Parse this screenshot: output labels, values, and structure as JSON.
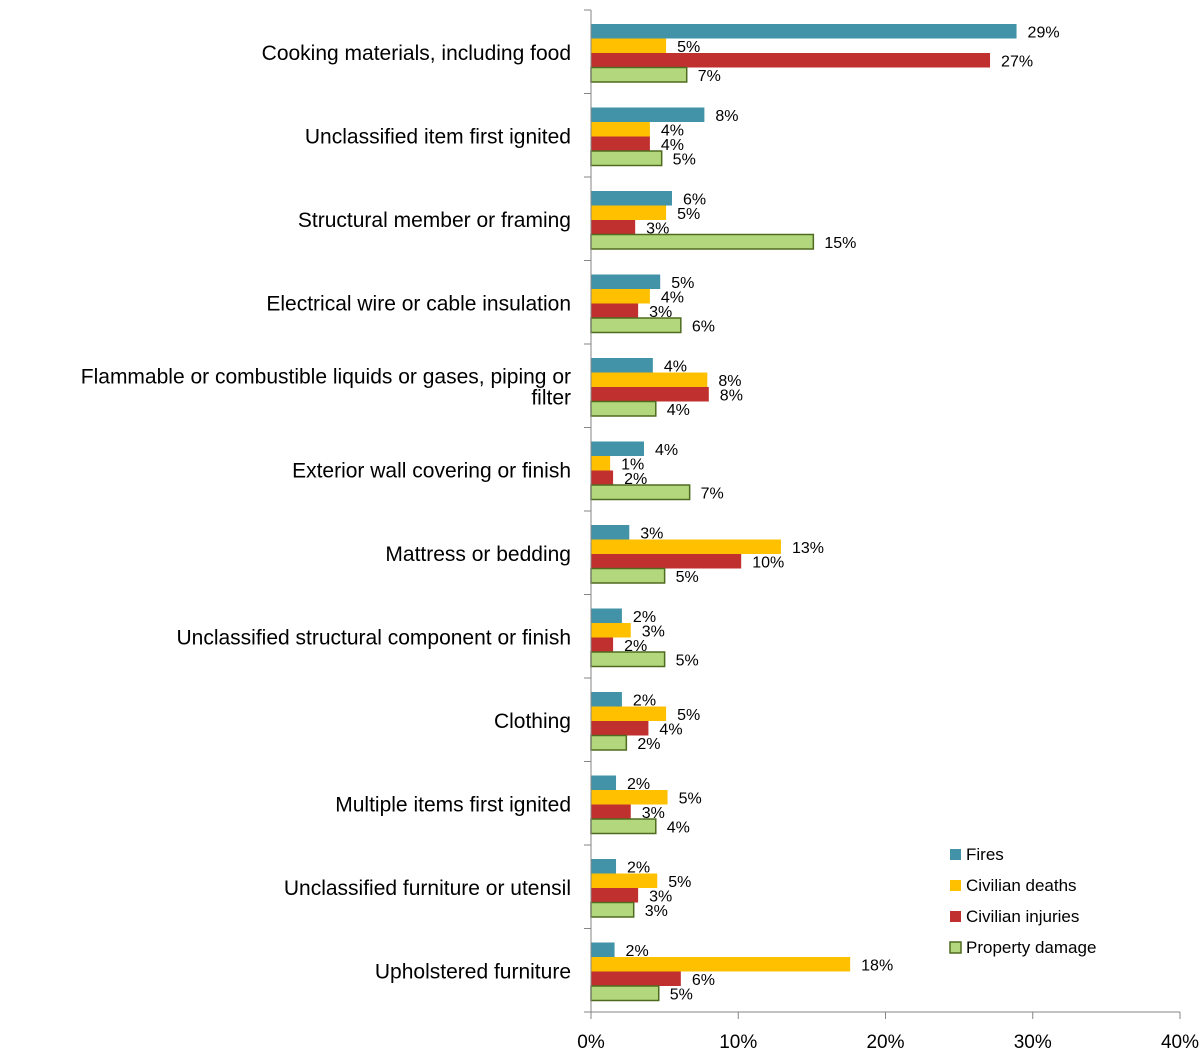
{
  "chart_data": {
    "type": "bar",
    "orientation": "horizontal",
    "title": "",
    "xlabel": "",
    "ylabel": "",
    "xlim": [
      0,
      40
    ],
    "x_ticks": [
      0,
      10,
      20,
      30,
      40
    ],
    "tick_suffix": "%",
    "grid": false,
    "legend_position": "bottom-right",
    "categories": [
      [
        "Cooking materials, including food"
      ],
      [
        "Unclassified item first ignited"
      ],
      [
        "Structural member or framing"
      ],
      [
        "Electrical wire or cable insulation"
      ],
      [
        "Flammable or combustible liquids or gases, piping or",
        "filter"
      ],
      [
        "Exterior wall covering or finish"
      ],
      [
        "Mattress or bedding"
      ],
      [
        "Unclassified structural component or finish"
      ],
      [
        "Clothing"
      ],
      [
        "Multiple items first ignited"
      ],
      [
        "Unclassified furniture or utensil"
      ],
      [
        "Upholstered furniture"
      ]
    ],
    "series": [
      {
        "name": "Fires",
        "color": "#4293A8",
        "values": [
          28.9,
          7.7,
          5.5,
          4.7,
          4.2,
          3.6,
          2.6,
          2.1,
          2.1,
          1.7,
          1.7,
          1.6
        ],
        "labels": [
          "29%",
          "8%",
          "6%",
          "5%",
          "4%",
          "4%",
          "3%",
          "2%",
          "2%",
          "2%",
          "2%",
          "2%"
        ]
      },
      {
        "name": "Civilian deaths",
        "color": "#FFC000",
        "values": [
          5.1,
          4.0,
          5.1,
          4.0,
          7.9,
          1.3,
          12.9,
          2.7,
          5.1,
          5.2,
          4.5,
          17.6
        ],
        "labels": [
          "5%",
          "4%",
          "5%",
          "4%",
          "8%",
          "1%",
          "13%",
          "3%",
          "5%",
          "5%",
          "5%",
          "18%"
        ]
      },
      {
        "name": "Civilian injuries",
        "color": "#C0302F",
        "values": [
          27.1,
          4.0,
          3.0,
          3.2,
          8.0,
          1.5,
          10.2,
          1.5,
          3.9,
          2.7,
          3.2,
          6.1
        ],
        "labels": [
          "27%",
          "4%",
          "3%",
          "3%",
          "8%",
          "2%",
          "10%",
          "2%",
          "4%",
          "3%",
          "3%",
          "6%"
        ]
      },
      {
        "name": "Property damage",
        "color": "#B3D77C",
        "stroke": "#4E6B1F",
        "values": [
          6.5,
          4.8,
          15.1,
          6.1,
          4.4,
          6.7,
          5.0,
          5.0,
          2.4,
          4.4,
          2.9,
          4.6
        ],
        "labels": [
          "7%",
          "5%",
          "15%",
          "6%",
          "4%",
          "7%",
          "5%",
          "5%",
          "2%",
          "4%",
          "3%",
          "5%"
        ]
      }
    ]
  }
}
